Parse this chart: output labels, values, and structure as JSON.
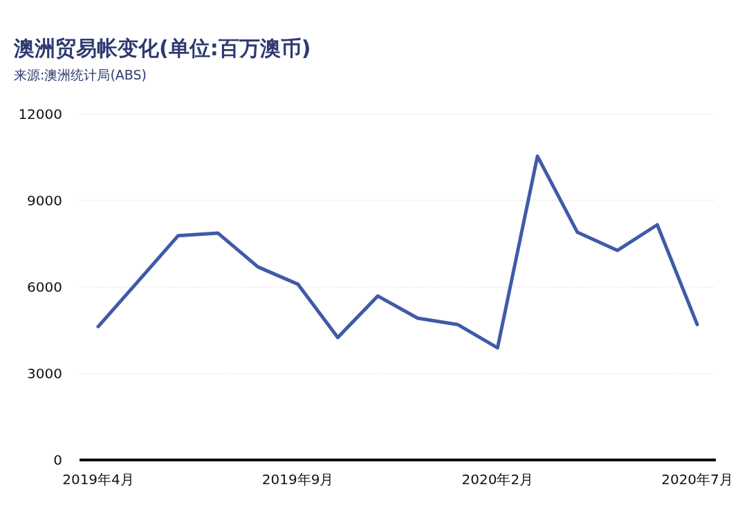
{
  "chart_data": {
    "type": "line",
    "title": "澳洲贸易帐变化(单位:百万澳币)",
    "subtitle": "来源:澳洲统计局(ABS)",
    "categories": [
      "2019年4月",
      null,
      null,
      null,
      null,
      "2019年9月",
      null,
      null,
      null,
      null,
      "2020年2月",
      null,
      null,
      null,
      null,
      "2020年7月"
    ],
    "series": [
      {
        "color": "#3f5ba8",
        "values": [
          4630,
          6200,
          7780,
          7870,
          6700,
          6100,
          4250,
          5690,
          4920,
          4700,
          3890,
          10540,
          7900,
          7270,
          8160,
          4700
        ]
      }
    ],
    "ylim": [
      0,
      12000
    ],
    "yticks": [
      0,
      3000,
      6000,
      9000,
      12000
    ],
    "grid": "y",
    "marker": "none",
    "line_style": "solid"
  }
}
